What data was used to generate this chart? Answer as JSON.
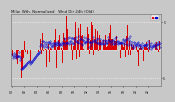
{
  "title": "Milw. Wth. Normalized   Wnd Dir 24h (Old)",
  "background_color": "#c8c8c8",
  "plot_bg_color": "#c8c8c8",
  "grid_color": "#ffffff",
  "ylim": [
    -6.5,
    6.5
  ],
  "ytick_vals": [
    -5,
    5
  ],
  "ytick_labels": [
    "-5",
    " 5"
  ],
  "ylabel_right": true,
  "num_points": 288,
  "bar_color": "#dd0000",
  "dot_color": "#0000cc",
  "title_fontsize": 2.8,
  "tick_fontsize": 2.2,
  "legend_box_red": "#dd0000",
  "legend_box_blue": "#0000cc"
}
